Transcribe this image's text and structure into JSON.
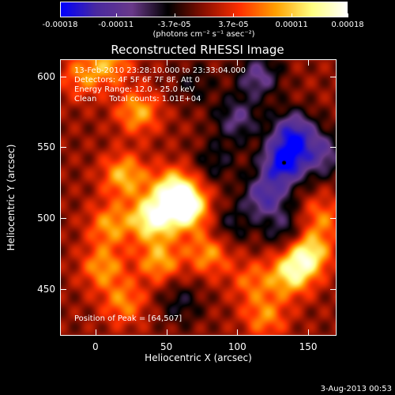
{
  "chart_data": {
    "type": "heatmap",
    "title": "Reconstructed RHESSI Image",
    "xlabel": "Heliocentric X (arcsec)",
    "ylabel": "Heliocentric Y (arcsec)",
    "xlim": [
      -25,
      170
    ],
    "ylim": [
      417,
      612
    ],
    "x_ticks": [
      "0",
      "50",
      "100",
      "150"
    ],
    "x_tick_values": [
      0,
      50,
      100,
      150
    ],
    "y_ticks": [
      "450",
      "500",
      "550",
      "600"
    ],
    "y_tick_values": [
      450,
      500,
      550,
      600
    ],
    "colorbar": {
      "ticks": [
        "-0.00018",
        "-0.00011",
        "-3.7e-05",
        "3.7e-05",
        "0.00011",
        "0.00018"
      ],
      "tick_values": [
        -0.00018,
        -0.00011,
        -3.7e-05,
        3.7e-05,
        0.00011,
        0.00018
      ],
      "range": [
        -0.00018,
        0.00018
      ],
      "units": "(photons cm⁻² s⁻¹ asec⁻²)"
    },
    "annotations": [
      "13-Feb-2010 23:28:10.000 to 23:33:04.000",
      "Detectors: 4F 5F 6F 7F 8F, Att 0",
      "Energy Range: 12.0 - 25.0 keV",
      "Clean     Total counts: 1.01E+04"
    ],
    "peak_label": "Position of Peak = [64,507]",
    "peak_position": [
      64,
      507
    ],
    "marker_position": [
      133,
      539
    ],
    "grid": false,
    "blobs": [
      {
        "x": 64,
        "y": 507,
        "value": 1.0
      },
      {
        "x": 40,
        "y": 500,
        "value": 0.9
      },
      {
        "x": 55,
        "y": 520,
        "value": 0.75
      },
      {
        "x": 20,
        "y": 530,
        "value": 0.6
      },
      {
        "x": 30,
        "y": 575,
        "value": 0.55
      },
      {
        "x": 10,
        "y": 495,
        "value": 0.5
      },
      {
        "x": 45,
        "y": 470,
        "value": 0.55
      },
      {
        "x": 80,
        "y": 475,
        "value": 0.5
      },
      {
        "x": 5,
        "y": 465,
        "value": 0.5
      },
      {
        "x": 20,
        "y": 440,
        "value": 0.45
      },
      {
        "x": 110,
        "y": 455,
        "value": 0.35
      },
      {
        "x": 150,
        "y": 475,
        "value": 0.8
      },
      {
        "x": 138,
        "y": 460,
        "value": 0.7
      },
      {
        "x": 160,
        "y": 500,
        "value": 0.4
      },
      {
        "x": 120,
        "y": 430,
        "value": 0.45
      },
      {
        "x": -10,
        "y": 600,
        "value": 0.4
      },
      {
        "x": 10,
        "y": 610,
        "value": 0.5
      },
      {
        "x": 133,
        "y": 539,
        "value": -1.0
      },
      {
        "x": 140,
        "y": 560,
        "value": -0.8
      },
      {
        "x": 120,
        "y": 515,
        "value": -0.7
      },
      {
        "x": 100,
        "y": 570,
        "value": -0.5
      },
      {
        "x": 160,
        "y": 545,
        "value": -0.55
      },
      {
        "x": 115,
        "y": 600,
        "value": -0.55
      },
      {
        "x": 85,
        "y": 540,
        "value": -0.3
      },
      {
        "x": 135,
        "y": 490,
        "value": -0.4
      },
      {
        "x": 70,
        "y": 595,
        "value": -0.25
      },
      {
        "x": 60,
        "y": 440,
        "value": -0.3
      },
      {
        "x": 95,
        "y": 495,
        "value": -0.3
      }
    ]
  },
  "timestamp": "3-Aug-2013 00:53",
  "colors": {
    "colorbar_stops": [
      "#0000ff",
      "#4a2aa0",
      "#6a3a8a",
      "#000000",
      "#8a1000",
      "#ff3000",
      "#ffa000",
      "#ffff80",
      "#ffffff"
    ]
  }
}
